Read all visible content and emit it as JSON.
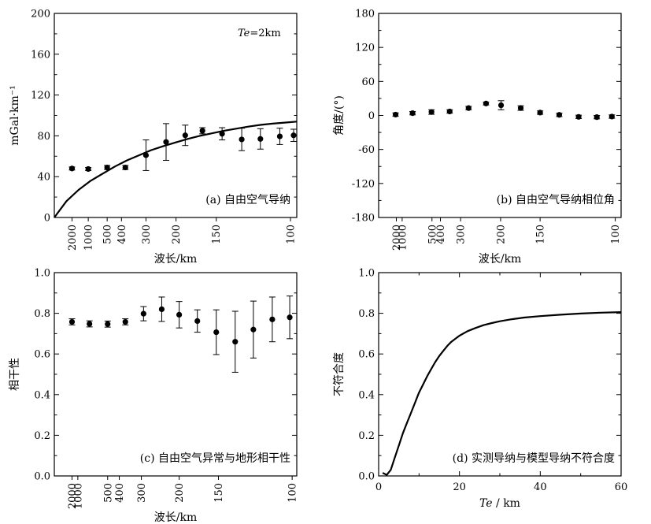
{
  "chart_data": [
    {
      "id": "a",
      "type": "scatter",
      "panel_label": "(a)  自由空气导纳",
      "annotation": "Te=2km",
      "annotation_italic": "Te",
      "annotation_rest": "=2km",
      "ylabel": "mGal·km⁻¹",
      "xlabel": "波长/km",
      "ylim": [
        0,
        200
      ],
      "y_ticks": [
        0,
        40,
        80,
        120,
        160,
        200
      ],
      "x_domain": [
        0,
        100
      ],
      "x_ticks": [
        {
          "v": 7.3,
          "label": "2000"
        },
        {
          "v": 14.0,
          "label": "1000"
        },
        {
          "v": 21.8,
          "label": "500"
        },
        {
          "v": 27.7,
          "label": "400"
        },
        {
          "v": 37.8,
          "label": "300"
        },
        {
          "v": 50.2,
          "label": "200"
        },
        {
          "v": 66.8,
          "label": "150"
        },
        {
          "v": 97.4,
          "label": "100"
        }
      ],
      "points": [
        {
          "x": 7.3,
          "y": 48,
          "err": 1.5
        },
        {
          "x": 14.0,
          "y": 47.5,
          "err": 1.5
        },
        {
          "x": 21.8,
          "y": 49,
          "err": 2
        },
        {
          "x": 29.3,
          "y": 49,
          "err": 2
        },
        {
          "x": 37.8,
          "y": 61,
          "err": 15
        },
        {
          "x": 46.1,
          "y": 74,
          "err": 18
        },
        {
          "x": 54.0,
          "y": 80.5,
          "err": 10
        },
        {
          "x": 61.1,
          "y": 85,
          "err": 3
        },
        {
          "x": 69.2,
          "y": 82,
          "err": 6
        },
        {
          "x": 77.3,
          "y": 76.5,
          "err": 11
        },
        {
          "x": 85.0,
          "y": 77,
          "err": 10
        },
        {
          "x": 93.0,
          "y": 79.5,
          "err": 8
        },
        {
          "x": 98.7,
          "y": 80.5,
          "err": 6
        }
      ],
      "model_curve": [
        [
          0,
          0
        ],
        [
          5,
          16
        ],
        [
          10,
          27
        ],
        [
          15,
          36
        ],
        [
          20,
          43
        ],
        [
          25,
          50
        ],
        [
          30,
          56
        ],
        [
          35,
          61
        ],
        [
          40,
          66
        ],
        [
          45,
          70
        ],
        [
          50,
          73.5
        ],
        [
          55,
          77
        ],
        [
          60,
          80
        ],
        [
          65,
          82.5
        ],
        [
          70,
          85
        ],
        [
          75,
          87
        ],
        [
          80,
          89
        ],
        [
          85,
          90.7
        ],
        [
          90,
          92
        ],
        [
          95,
          93
        ],
        [
          100,
          94
        ]
      ]
    },
    {
      "id": "b",
      "type": "scatter",
      "panel_label": "(b)  自由空气导纳相位角",
      "ylabel": "角度/(°)",
      "xlabel": "波长/km",
      "ylim": [
        -180,
        180
      ],
      "y_ticks": [
        -180,
        -120,
        -60,
        0,
        60,
        120,
        180
      ],
      "x_domain": [
        0,
        100
      ],
      "x_ticks": [
        {
          "v": 7.3,
          "label": "2000"
        },
        {
          "v": 9.7,
          "label": "1000"
        },
        {
          "v": 22.0,
          "label": "500"
        },
        {
          "v": 25.5,
          "label": "400"
        },
        {
          "v": 33.8,
          "label": "300"
        },
        {
          "v": 50.3,
          "label": "200"
        },
        {
          "v": 66.6,
          "label": "150"
        },
        {
          "v": 97.6,
          "label": "100"
        }
      ],
      "points": [
        {
          "x": 7.0,
          "y": 1.5,
          "err": 3
        },
        {
          "x": 14.0,
          "y": 4,
          "err": 3
        },
        {
          "x": 21.8,
          "y": 6,
          "err": 4
        },
        {
          "x": 29.3,
          "y": 7,
          "err": 3
        },
        {
          "x": 37.1,
          "y": 13,
          "err": 3
        },
        {
          "x": 44.3,
          "y": 21,
          "err": 2.5
        },
        {
          "x": 50.5,
          "y": 18,
          "err": 8
        },
        {
          "x": 58.6,
          "y": 13,
          "err": 4
        },
        {
          "x": 66.6,
          "y": 5,
          "err": 3
        },
        {
          "x": 74.5,
          "y": 1,
          "err": 3
        },
        {
          "x": 82.5,
          "y": -2.5,
          "err": 3
        },
        {
          "x": 90.0,
          "y": -3,
          "err": 3
        },
        {
          "x": 96.2,
          "y": -2,
          "err": 3
        }
      ]
    },
    {
      "id": "c",
      "type": "scatter",
      "panel_label": "(c)  自由空气异常与地形相干性",
      "ylabel": "相干性",
      "xlabel": "波长/km",
      "ylim": [
        0,
        1
      ],
      "y_ticks": [
        0.0,
        0.2,
        0.4,
        0.6,
        0.8,
        1.0
      ],
      "y_tick_labels": [
        "0.0",
        "0.2",
        "0.4",
        "0.6",
        "0.8",
        "1.0"
      ],
      "x_domain": [
        0,
        100
      ],
      "x_ticks": [
        {
          "v": 7.3,
          "label": "2000"
        },
        {
          "v": 9.7,
          "label": "1000"
        },
        {
          "v": 22.0,
          "label": "500"
        },
        {
          "v": 26.8,
          "label": "400"
        },
        {
          "v": 35.9,
          "label": "300"
        },
        {
          "v": 51.5,
          "label": "200"
        },
        {
          "v": 67.7,
          "label": "150"
        },
        {
          "v": 98.1,
          "label": "100"
        }
      ],
      "points": [
        {
          "x": 7.3,
          "y": 0.758,
          "err": 0.015
        },
        {
          "x": 14.5,
          "y": 0.748,
          "err": 0.015
        },
        {
          "x": 22.0,
          "y": 0.747,
          "err": 0.015
        },
        {
          "x": 29.3,
          "y": 0.758,
          "err": 0.015
        },
        {
          "x": 36.8,
          "y": 0.798,
          "err": 0.035
        },
        {
          "x": 44.3,
          "y": 0.82,
          "err": 0.06
        },
        {
          "x": 51.5,
          "y": 0.793,
          "err": 0.065
        },
        {
          "x": 59.0,
          "y": 0.762,
          "err": 0.055
        },
        {
          "x": 66.8,
          "y": 0.707,
          "err": 0.11
        },
        {
          "x": 74.6,
          "y": 0.66,
          "err": 0.15
        },
        {
          "x": 82.1,
          "y": 0.72,
          "err": 0.14
        },
        {
          "x": 89.9,
          "y": 0.77,
          "err": 0.11
        },
        {
          "x": 97.1,
          "y": 0.78,
          "err": 0.105
        }
      ]
    },
    {
      "id": "d",
      "type": "line",
      "panel_label": "(d)  实测导纳与模型导纳不符合度",
      "ylabel": "不符合度",
      "xlabel": "Te / km",
      "xlabel_italic": "Te",
      "xlabel_rest": " / km",
      "ylim": [
        0,
        1
      ],
      "xlim": [
        0,
        60
      ],
      "y_ticks": [
        0.0,
        0.2,
        0.4,
        0.6,
        0.8,
        1.0
      ],
      "y_tick_labels": [
        "0.0",
        "0.2",
        "0.4",
        "0.6",
        "0.8",
        "1.0"
      ],
      "x_ticks": [
        0,
        20,
        40,
        60
      ],
      "curve": [
        [
          1,
          0.015
        ],
        [
          2,
          0.005
        ],
        [
          3,
          0.03
        ],
        [
          4,
          0.09
        ],
        [
          5,
          0.15
        ],
        [
          6,
          0.21
        ],
        [
          7,
          0.26
        ],
        [
          8,
          0.31
        ],
        [
          9,
          0.36
        ],
        [
          10,
          0.41
        ],
        [
          11,
          0.45
        ],
        [
          12,
          0.49
        ],
        [
          13,
          0.525
        ],
        [
          14,
          0.56
        ],
        [
          15,
          0.59
        ],
        [
          16,
          0.615
        ],
        [
          17,
          0.64
        ],
        [
          18,
          0.66
        ],
        [
          19,
          0.675
        ],
        [
          20,
          0.69
        ],
        [
          22,
          0.712
        ],
        [
          24,
          0.728
        ],
        [
          26,
          0.742
        ],
        [
          28,
          0.752
        ],
        [
          30,
          0.761
        ],
        [
          33,
          0.771
        ],
        [
          36,
          0.779
        ],
        [
          40,
          0.786
        ],
        [
          45,
          0.793
        ],
        [
          50,
          0.799
        ],
        [
          55,
          0.803
        ],
        [
          60,
          0.806
        ]
      ]
    }
  ]
}
